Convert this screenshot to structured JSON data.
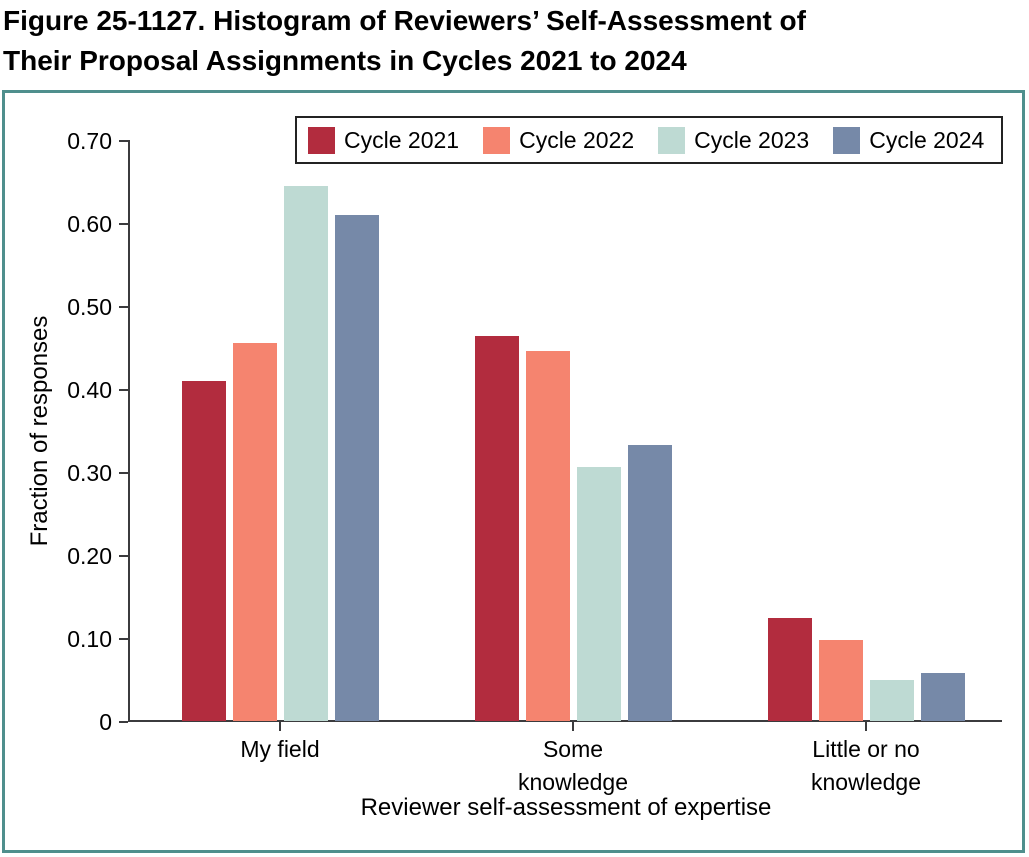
{
  "figure": {
    "title_lines": [
      "Figure 25-1127. Histogram of Reviewers’ Self-Assessment of",
      "Their Proposal Assignments in Cycles 2021 to 2024"
    ]
  },
  "chart_data": {
    "type": "bar",
    "title": "Figure 25-1127. Histogram of Reviewers’ Self-Assessment of Their Proposal Assignments in Cycles 2021 to 2024",
    "categories": [
      "My field",
      "Some\nknowledge",
      "Little or no\nknowledge"
    ],
    "series": [
      {
        "name": "Cycle 2021",
        "color": "#b22c3e",
        "values": [
          0.41,
          0.464,
          0.124
        ]
      },
      {
        "name": "Cycle 2022",
        "color": "#f5846f",
        "values": [
          0.455,
          0.446,
          0.097
        ]
      },
      {
        "name": "Cycle 2023",
        "color": "#bedad3",
        "values": [
          0.645,
          0.306,
          0.049
        ]
      },
      {
        "name": "Cycle 2024",
        "color": "#7689a8",
        "values": [
          0.61,
          0.333,
          0.058
        ]
      }
    ],
    "xlabel": "Reviewer self-assessment of expertise",
    "ylabel": "Fraction of responses",
    "ylim": [
      0,
      0.7
    ],
    "yticks": [
      0,
      0.1,
      0.2,
      0.3,
      0.4,
      0.5,
      0.6,
      0.7
    ],
    "ytick_labels": [
      "0",
      "0.10",
      "0.20",
      "0.30",
      "0.40",
      "0.50",
      "0.60",
      "0.70"
    ],
    "legend_position": "top",
    "grid": false
  },
  "colors": {
    "figure_border": "#4f8f8d",
    "axis": "#3b3b3d",
    "legend_border": "#232323",
    "text": "#000000"
  }
}
